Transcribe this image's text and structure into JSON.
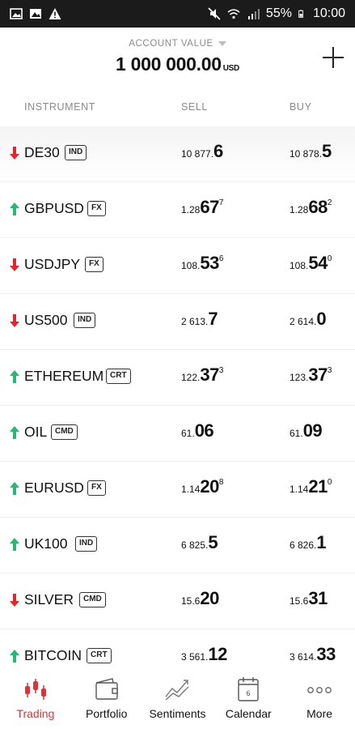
{
  "status_bar": {
    "battery": "55%",
    "time": "10:00"
  },
  "header": {
    "account_label": "ACCOUNT VALUE",
    "account_value": "1 000 000.00",
    "currency": "USD"
  },
  "columns": {
    "instrument": "INSTRUMENT",
    "sell": "SELL",
    "buy": "BUY"
  },
  "colors": {
    "up": "#2bb673",
    "down": "#e2262f",
    "active_tab": "#d9343b"
  },
  "instruments": [
    {
      "symbol": "DE30",
      "tag": "IND",
      "direction": "down",
      "sell": {
        "p1": "10 877.",
        "p2": "6",
        "p3": ""
      },
      "buy": {
        "p1": "10 878.",
        "p2": "5",
        "p3": ""
      }
    },
    {
      "symbol": "GBPUSD",
      "tag": "FX",
      "direction": "up",
      "sell": {
        "p1": "1.28",
        "p2": "67",
        "p3": "7"
      },
      "buy": {
        "p1": "1.28",
        "p2": "68",
        "p3": "2"
      }
    },
    {
      "symbol": "USDJPY",
      "tag": "FX",
      "direction": "down",
      "sell": {
        "p1": "108.",
        "p2": "53",
        "p3": "6"
      },
      "buy": {
        "p1": "108.",
        "p2": "54",
        "p3": "0"
      }
    },
    {
      "symbol": "US500",
      "tag": "IND",
      "direction": "down",
      "sell": {
        "p1": "2 613.",
        "p2": "7",
        "p3": ""
      },
      "buy": {
        "p1": "2 614.",
        "p2": "0",
        "p3": ""
      }
    },
    {
      "symbol": "ETHEREUM",
      "tag": "CRT",
      "direction": "up",
      "sell": {
        "p1": "122.",
        "p2": "37",
        "p3": "3"
      },
      "buy": {
        "p1": "123.",
        "p2": "37",
        "p3": "3"
      }
    },
    {
      "symbol": "OIL",
      "tag": "CMD",
      "direction": "up",
      "sell": {
        "p1": "61.",
        "p2": "06",
        "p3": ""
      },
      "buy": {
        "p1": "61.",
        "p2": "09",
        "p3": ""
      }
    },
    {
      "symbol": "EURUSD",
      "tag": "FX",
      "direction": "up",
      "sell": {
        "p1": "1.14",
        "p2": "20",
        "p3": "8"
      },
      "buy": {
        "p1": "1.14",
        "p2": "21",
        "p3": "0"
      }
    },
    {
      "symbol": "UK100",
      "tag": "IND",
      "direction": "up",
      "sell": {
        "p1": "6 825.",
        "p2": "5",
        "p3": ""
      },
      "buy": {
        "p1": "6 826.",
        "p2": "1",
        "p3": ""
      }
    },
    {
      "symbol": "SILVER",
      "tag": "CMD",
      "direction": "down",
      "sell": {
        "p1": "15.6",
        "p2": "20",
        "p3": ""
      },
      "buy": {
        "p1": "15.6",
        "p2": "31",
        "p3": ""
      }
    },
    {
      "symbol": "BITCOIN",
      "tag": "CRT",
      "direction": "up",
      "sell": {
        "p1": "3 561.",
        "p2": "12",
        "p3": ""
      },
      "buy": {
        "p1": "3 614.",
        "p2": "33",
        "p3": ""
      }
    }
  ],
  "nav": [
    {
      "label": "Trading",
      "icon": "candlestick-icon",
      "active": true
    },
    {
      "label": "Portfolio",
      "icon": "wallet-icon",
      "active": false
    },
    {
      "label": "Sentiments",
      "icon": "trend-lines-icon",
      "active": false
    },
    {
      "label": "Calendar",
      "icon": "calendar-icon",
      "active": false,
      "badge": "6"
    },
    {
      "label": "More",
      "icon": "more-dots-icon",
      "active": false
    }
  ]
}
